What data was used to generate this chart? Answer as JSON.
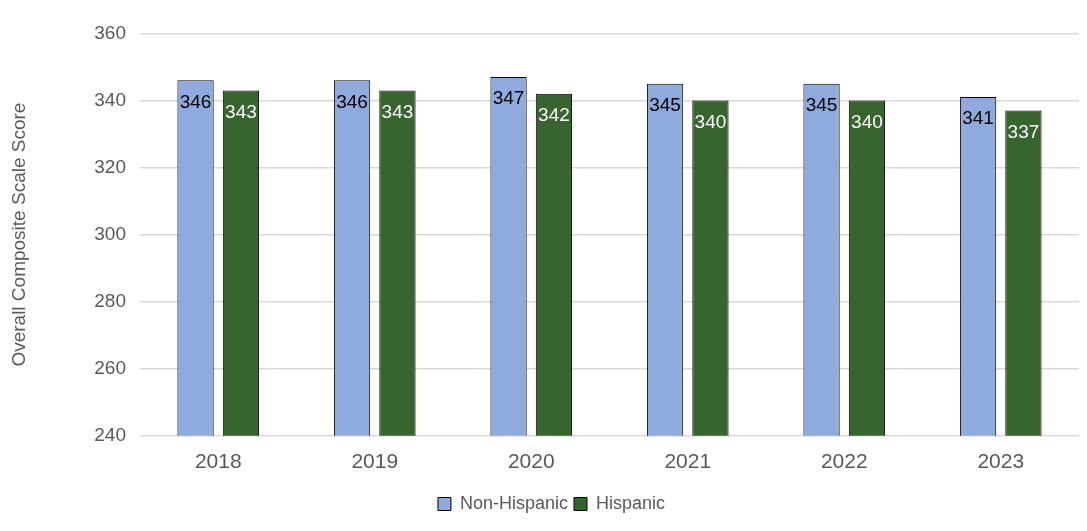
{
  "chart_data": {
    "type": "bar",
    "ylabel": "Overall Composite Scale Score",
    "categories": [
      "2018",
      "2019",
      "2020",
      "2021",
      "2022",
      "2023"
    ],
    "series": [
      {
        "name": "Non-Hispanic",
        "color": "#8faadc",
        "values": [
          346,
          346,
          347,
          345,
          345,
          341
        ]
      },
      {
        "name": "Hispanic",
        "color": "#38642f",
        "values": [
          343,
          343,
          342,
          340,
          340,
          337
        ]
      }
    ],
    "ylim": [
      240,
      360
    ],
    "yticks": [
      240,
      260,
      280,
      300,
      320,
      340,
      360
    ],
    "grid": "y",
    "legend": "bottom",
    "data_labels": true
  }
}
